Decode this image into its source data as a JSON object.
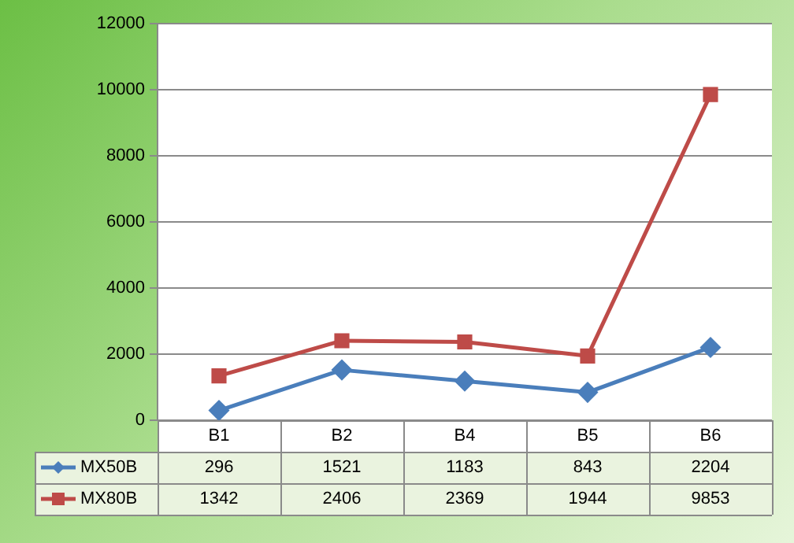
{
  "chart_data": {
    "type": "line",
    "categories": [
      "B1",
      "B2",
      "B4",
      "B5",
      "B6"
    ],
    "series": [
      {
        "name": "MX50B",
        "color": "#4a7ebb",
        "marker": "diamond",
        "values": [
          296,
          1521,
          1183,
          843,
          2204
        ]
      },
      {
        "name": "MX80B",
        "color": "#be4b48",
        "marker": "square",
        "values": [
          1342,
          2406,
          2369,
          1944,
          9853
        ]
      }
    ],
    "ylim": [
      0,
      12000
    ],
    "yticks": [
      0,
      2000,
      4000,
      6000,
      8000,
      10000,
      12000
    ],
    "grid": "y",
    "legend": "bottom",
    "data_labels": true
  }
}
